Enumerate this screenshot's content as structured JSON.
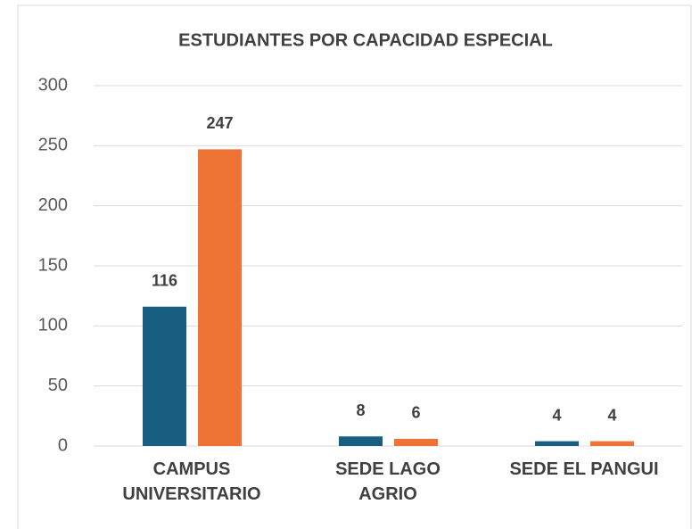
{
  "chart_data": {
    "type": "bar",
    "title": "ESTUDIANTES POR CAPACIDAD ESPECIAL",
    "categories": [
      "CAMPUS\nUNIVERSITARIO",
      "SEDE LAGO\nAGRIO",
      "SEDE EL PANGUI"
    ],
    "series": [
      {
        "color": "#175e80",
        "values": [
          116,
          8,
          4
        ]
      },
      {
        "color": "#ed7434",
        "values": [
          247,
          6,
          4
        ]
      }
    ],
    "ylim": [
      0,
      300
    ],
    "yticks": [
      0,
      50,
      100,
      150,
      200,
      250,
      300
    ],
    "grid": true
  }
}
